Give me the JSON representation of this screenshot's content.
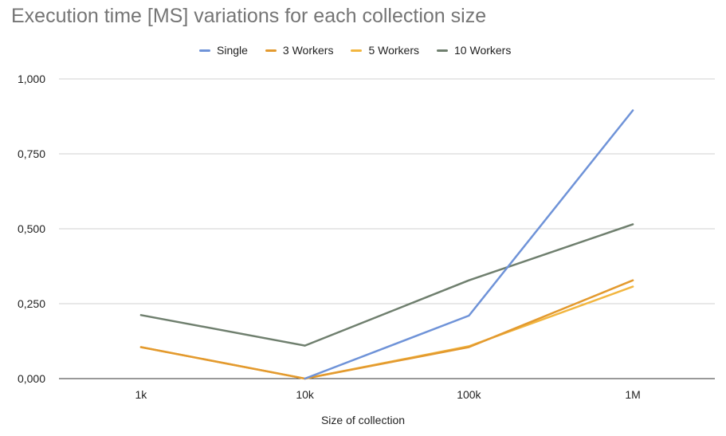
{
  "chart_data": {
    "type": "line",
    "title": "Execution time [MS] variations for each collection size",
    "xlabel": "Size of collection",
    "ylabel": "",
    "categories": [
      "1k",
      "10k",
      "100k",
      "1M"
    ],
    "ylim": [
      0,
      1
    ],
    "yticks": [
      "0,000",
      "0,250",
      "0,500",
      "0,750",
      "1,000"
    ],
    "ytick_values": [
      0,
      0.25,
      0.5,
      0.75,
      1.0
    ],
    "grid": true,
    "legend_position": "top",
    "series": [
      {
        "name": "Single",
        "color": "#6f93d8",
        "values": [
          null,
          0.0,
          0.21,
          0.895
        ]
      },
      {
        "name": "3 Workers",
        "color": "#e39a2f",
        "values": [
          0.105,
          0.0,
          0.105,
          0.328
        ]
      },
      {
        "name": "5 Workers",
        "color": "#f2b640",
        "values": [
          0.105,
          0.0,
          0.108,
          0.307
        ]
      },
      {
        "name": "10 Workers",
        "color": "#6f7f6e",
        "values": [
          0.212,
          0.11,
          0.328,
          0.515
        ]
      }
    ]
  }
}
